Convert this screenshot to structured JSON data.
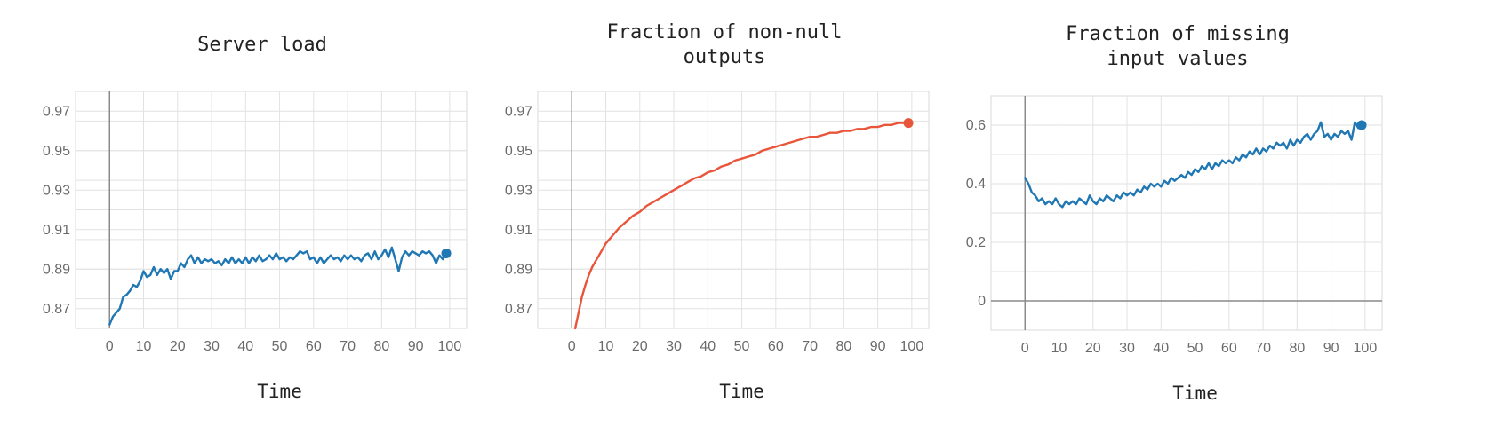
{
  "chart_data": [
    {
      "type": "line",
      "title": "Server load",
      "xlabel": "Time",
      "ylabel": "",
      "xlim": [
        -10,
        105
      ],
      "ylim": [
        0.86,
        0.98
      ],
      "xticks": [
        "0",
        "10",
        "20",
        "30",
        "40",
        "50",
        "60",
        "70",
        "80",
        "90",
        "100"
      ],
      "yticks": [
        "0.97",
        "0.95",
        "0.93",
        "0.91",
        "0.89",
        "0.87"
      ],
      "grid": true,
      "color": "#1f77b4",
      "series": [
        {
          "values": [
            [
              0,
              0.862
            ],
            [
              1,
              0.866
            ],
            [
              2,
              0.868
            ],
            [
              3,
              0.87
            ],
            [
              4,
              0.876
            ],
            [
              5,
              0.877
            ],
            [
              6,
              0.879
            ],
            [
              7,
              0.882
            ],
            [
              8,
              0.881
            ],
            [
              9,
              0.884
            ],
            [
              10,
              0.889
            ],
            [
              11,
              0.886
            ],
            [
              12,
              0.887
            ],
            [
              13,
              0.891
            ],
            [
              14,
              0.887
            ],
            [
              15,
              0.89
            ],
            [
              16,
              0.888
            ],
            [
              17,
              0.89
            ],
            [
              18,
              0.885
            ],
            [
              19,
              0.889
            ],
            [
              20,
              0.889
            ],
            [
              21,
              0.893
            ],
            [
              22,
              0.891
            ],
            [
              23,
              0.895
            ],
            [
              24,
              0.897
            ],
            [
              25,
              0.893
            ],
            [
              26,
              0.896
            ],
            [
              27,
              0.893
            ],
            [
              28,
              0.895
            ],
            [
              29,
              0.894
            ],
            [
              30,
              0.895
            ],
            [
              31,
              0.893
            ],
            [
              32,
              0.894
            ],
            [
              33,
              0.892
            ],
            [
              34,
              0.895
            ],
            [
              35,
              0.893
            ],
            [
              36,
              0.896
            ],
            [
              37,
              0.893
            ],
            [
              38,
              0.895
            ],
            [
              39,
              0.893
            ],
            [
              40,
              0.896
            ],
            [
              41,
              0.893
            ],
            [
              42,
              0.896
            ],
            [
              43,
              0.894
            ],
            [
              44,
              0.897
            ],
            [
              45,
              0.894
            ],
            [
              46,
              0.895
            ],
            [
              47,
              0.897
            ],
            [
              48,
              0.895
            ],
            [
              49,
              0.898
            ],
            [
              50,
              0.895
            ],
            [
              51,
              0.896
            ],
            [
              52,
              0.894
            ],
            [
              53,
              0.896
            ],
            [
              54,
              0.895
            ],
            [
              55,
              0.897
            ],
            [
              56,
              0.899
            ],
            [
              57,
              0.898
            ],
            [
              58,
              0.899
            ],
            [
              59,
              0.895
            ],
            [
              60,
              0.896
            ],
            [
              61,
              0.893
            ],
            [
              62,
              0.896
            ],
            [
              63,
              0.893
            ],
            [
              64,
              0.895
            ],
            [
              65,
              0.897
            ],
            [
              66,
              0.895
            ],
            [
              67,
              0.896
            ],
            [
              68,
              0.894
            ],
            [
              69,
              0.897
            ],
            [
              70,
              0.895
            ],
            [
              71,
              0.897
            ],
            [
              72,
              0.895
            ],
            [
              73,
              0.896
            ],
            [
              74,
              0.894
            ],
            [
              75,
              0.897
            ],
            [
              76,
              0.898
            ],
            [
              77,
              0.895
            ],
            [
              78,
              0.899
            ],
            [
              79,
              0.895
            ],
            [
              80,
              0.897
            ],
            [
              81,
              0.9
            ],
            [
              82,
              0.896
            ],
            [
              83,
              0.901
            ],
            [
              84,
              0.895
            ],
            [
              85,
              0.889
            ],
            [
              86,
              0.896
            ],
            [
              87,
              0.899
            ],
            [
              88,
              0.897
            ],
            [
              89,
              0.899
            ],
            [
              90,
              0.898
            ],
            [
              91,
              0.897
            ],
            [
              92,
              0.899
            ],
            [
              93,
              0.898
            ],
            [
              94,
              0.899
            ],
            [
              95,
              0.897
            ],
            [
              96,
              0.893
            ],
            [
              97,
              0.897
            ],
            [
              98,
              0.895
            ],
            [
              99,
              0.898
            ]
          ]
        }
      ]
    },
    {
      "type": "line",
      "title": "Fraction of non-null\noutputs",
      "xlabel": "Time",
      "ylabel": "",
      "xlim": [
        -10,
        105
      ],
      "ylim": [
        0.86,
        0.98
      ],
      "xticks": [
        "0",
        "10",
        "20",
        "30",
        "40",
        "50",
        "60",
        "70",
        "80",
        "90",
        "100"
      ],
      "yticks": [
        "0.97",
        "0.95",
        "0.93",
        "0.91",
        "0.89",
        "0.87"
      ],
      "grid": true,
      "color": "#e8553a",
      "series": [
        {
          "values": [
            [
              1,
              0.86
            ],
            [
              2,
              0.868
            ],
            [
              3,
              0.876
            ],
            [
              4,
              0.882
            ],
            [
              5,
              0.887
            ],
            [
              6,
              0.891
            ],
            [
              7,
              0.894
            ],
            [
              8,
              0.897
            ],
            [
              9,
              0.9
            ],
            [
              10,
              0.903
            ],
            [
              12,
              0.907
            ],
            [
              14,
              0.911
            ],
            [
              16,
              0.914
            ],
            [
              18,
              0.917
            ],
            [
              20,
              0.919
            ],
            [
              22,
              0.922
            ],
            [
              24,
              0.924
            ],
            [
              26,
              0.926
            ],
            [
              28,
              0.928
            ],
            [
              30,
              0.93
            ],
            [
              32,
              0.932
            ],
            [
              34,
              0.934
            ],
            [
              36,
              0.936
            ],
            [
              38,
              0.937
            ],
            [
              40,
              0.939
            ],
            [
              42,
              0.94
            ],
            [
              44,
              0.942
            ],
            [
              46,
              0.943
            ],
            [
              48,
              0.945
            ],
            [
              50,
              0.946
            ],
            [
              52,
              0.947
            ],
            [
              54,
              0.948
            ],
            [
              56,
              0.95
            ],
            [
              58,
              0.951
            ],
            [
              60,
              0.952
            ],
            [
              62,
              0.953
            ],
            [
              64,
              0.954
            ],
            [
              66,
              0.955
            ],
            [
              68,
              0.956
            ],
            [
              70,
              0.957
            ],
            [
              72,
              0.957
            ],
            [
              74,
              0.958
            ],
            [
              76,
              0.959
            ],
            [
              78,
              0.959
            ],
            [
              80,
              0.96
            ],
            [
              82,
              0.96
            ],
            [
              84,
              0.961
            ],
            [
              86,
              0.961
            ],
            [
              88,
              0.962
            ],
            [
              90,
              0.962
            ],
            [
              92,
              0.963
            ],
            [
              94,
              0.963
            ],
            [
              96,
              0.964
            ],
            [
              98,
              0.964
            ],
            [
              99,
              0.964
            ]
          ]
        }
      ]
    },
    {
      "type": "line",
      "title": "Fraction of missing\ninput values",
      "xlabel": "Time",
      "ylabel": "",
      "xlim": [
        -10,
        105
      ],
      "ylim": [
        -0.1,
        0.7
      ],
      "xticks": [
        "0",
        "10",
        "20",
        "30",
        "40",
        "50",
        "60",
        "70",
        "80",
        "90",
        "100"
      ],
      "yticks": [
        "0.6",
        "0.4",
        "0.2",
        "0"
      ],
      "grid": true,
      "color": "#1f77b4",
      "series": [
        {
          "values": [
            [
              0,
              0.42
            ],
            [
              1,
              0.4
            ],
            [
              2,
              0.37
            ],
            [
              3,
              0.36
            ],
            [
              4,
              0.34
            ],
            [
              5,
              0.35
            ],
            [
              6,
              0.33
            ],
            [
              7,
              0.34
            ],
            [
              8,
              0.33
            ],
            [
              9,
              0.35
            ],
            [
              10,
              0.33
            ],
            [
              11,
              0.32
            ],
            [
              12,
              0.34
            ],
            [
              13,
              0.33
            ],
            [
              14,
              0.34
            ],
            [
              15,
              0.33
            ],
            [
              16,
              0.35
            ],
            [
              17,
              0.34
            ],
            [
              18,
              0.33
            ],
            [
              19,
              0.36
            ],
            [
              20,
              0.34
            ],
            [
              21,
              0.33
            ],
            [
              22,
              0.35
            ],
            [
              23,
              0.34
            ],
            [
              24,
              0.36
            ],
            [
              25,
              0.35
            ],
            [
              26,
              0.34
            ],
            [
              27,
              0.36
            ],
            [
              28,
              0.35
            ],
            [
              29,
              0.37
            ],
            [
              30,
              0.36
            ],
            [
              31,
              0.37
            ],
            [
              32,
              0.36
            ],
            [
              33,
              0.38
            ],
            [
              34,
              0.37
            ],
            [
              35,
              0.39
            ],
            [
              36,
              0.38
            ],
            [
              37,
              0.4
            ],
            [
              38,
              0.39
            ],
            [
              39,
              0.4
            ],
            [
              40,
              0.39
            ],
            [
              41,
              0.41
            ],
            [
              42,
              0.4
            ],
            [
              43,
              0.42
            ],
            [
              44,
              0.41
            ],
            [
              45,
              0.42
            ],
            [
              46,
              0.43
            ],
            [
              47,
              0.42
            ],
            [
              48,
              0.44
            ],
            [
              49,
              0.43
            ],
            [
              50,
              0.45
            ],
            [
              51,
              0.44
            ],
            [
              52,
              0.46
            ],
            [
              53,
              0.45
            ],
            [
              54,
              0.47
            ],
            [
              55,
              0.45
            ],
            [
              56,
              0.47
            ],
            [
              57,
              0.46
            ],
            [
              58,
              0.48
            ],
            [
              59,
              0.47
            ],
            [
              60,
              0.48
            ],
            [
              61,
              0.47
            ],
            [
              62,
              0.49
            ],
            [
              63,
              0.48
            ],
            [
              64,
              0.5
            ],
            [
              65,
              0.49
            ],
            [
              66,
              0.51
            ],
            [
              67,
              0.5
            ],
            [
              68,
              0.52
            ],
            [
              69,
              0.5
            ],
            [
              70,
              0.52
            ],
            [
              71,
              0.51
            ],
            [
              72,
              0.53
            ],
            [
              73,
              0.52
            ],
            [
              74,
              0.54
            ],
            [
              75,
              0.53
            ],
            [
              76,
              0.54
            ],
            [
              77,
              0.52
            ],
            [
              78,
              0.55
            ],
            [
              79,
              0.53
            ],
            [
              80,
              0.55
            ],
            [
              81,
              0.54
            ],
            [
              82,
              0.56
            ],
            [
              83,
              0.57
            ],
            [
              84,
              0.55
            ],
            [
              85,
              0.57
            ],
            [
              86,
              0.58
            ],
            [
              87,
              0.61
            ],
            [
              88,
              0.56
            ],
            [
              89,
              0.57
            ],
            [
              90,
              0.55
            ],
            [
              91,
              0.57
            ],
            [
              92,
              0.56
            ],
            [
              93,
              0.58
            ],
            [
              94,
              0.57
            ],
            [
              95,
              0.58
            ],
            [
              96,
              0.55
            ],
            [
              97,
              0.61
            ],
            [
              98,
              0.59
            ],
            [
              99,
              0.6
            ]
          ]
        }
      ]
    }
  ]
}
